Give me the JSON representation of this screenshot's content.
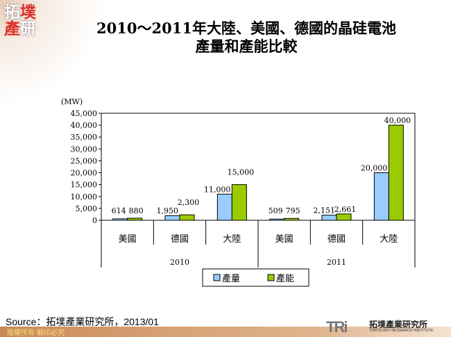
{
  "logo": {
    "text": "拓墣產研"
  },
  "title": {
    "line1": "2010～2011年大陸、美國、德國的晶硅電池",
    "line2": "產量和產能比較"
  },
  "source": "Source：拓墣產業研究所，2013/01",
  "footer": {
    "copyright": "版權所有‧翻印必究",
    "brand_logo": "TRi",
    "brand_cn": "拓墣產業研究所",
    "brand_en": "TOPOLOGY RESEARCH INSTITUTE"
  },
  "chart_data": {
    "type": "bar",
    "unit_label": "(MW)",
    "groups": [
      "2010",
      "2011"
    ],
    "categories": [
      "美國",
      "德國",
      "大陸",
      "美國",
      "德國",
      "大陸"
    ],
    "series": [
      {
        "name": "產量",
        "color": "#99ccff",
        "values": [
          614,
          1950,
          11000,
          509,
          2151,
          20000
        ],
        "labels": [
          "614",
          "1,950",
          "11,000",
          "509",
          "2,151",
          "20,000"
        ]
      },
      {
        "name": "產能",
        "color": "#99cc00",
        "values": [
          880,
          2300,
          15000,
          795,
          2661,
          40000
        ],
        "labels": [
          "880",
          "2,300",
          "15,000",
          "795",
          "2,661",
          "40,000"
        ]
      }
    ],
    "ylim": [
      0,
      45000
    ],
    "yticks": [
      "0",
      "5,000",
      "10,000",
      "15,000",
      "20,000",
      "25,000",
      "30,000",
      "35,000",
      "40,000",
      "45,000"
    ],
    "grid": false,
    "legend": "bottom"
  }
}
